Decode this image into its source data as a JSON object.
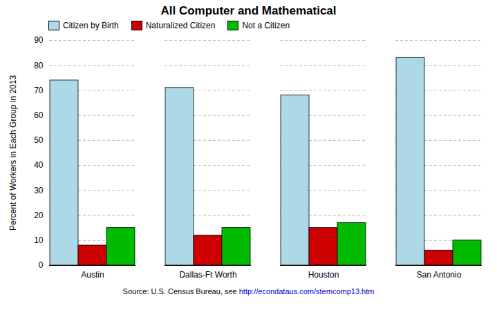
{
  "chart_data": {
    "type": "bar",
    "title": "All Computer and Mathematical",
    "ylabel": "Percent of Workers in Each Group in 2013",
    "caption": "Source: U.S. Census Bureau, see http://econdataus.com/stemcomp13.htm",
    "categories": [
      "Austin",
      "Dallas-Ft Worth",
      "Houston",
      "San Antonio"
    ],
    "series": [
      {
        "name": "Citizen by Birth",
        "color": "#add8e6",
        "values": [
          74,
          71,
          68,
          83
        ]
      },
      {
        "name": "Naturalized Citizen",
        "color": "#cc0000",
        "values": [
          8,
          12,
          15,
          6
        ]
      },
      {
        "name": "Not a Citizen",
        "color": "#00bb00",
        "values": [
          15,
          15,
          17,
          10
        ]
      }
    ],
    "ylim": [
      0,
      90
    ],
    "yticks": [
      0,
      10,
      20,
      30,
      40,
      50,
      60,
      70,
      80,
      90
    ],
    "grid": true,
    "legend": "upper left"
  }
}
